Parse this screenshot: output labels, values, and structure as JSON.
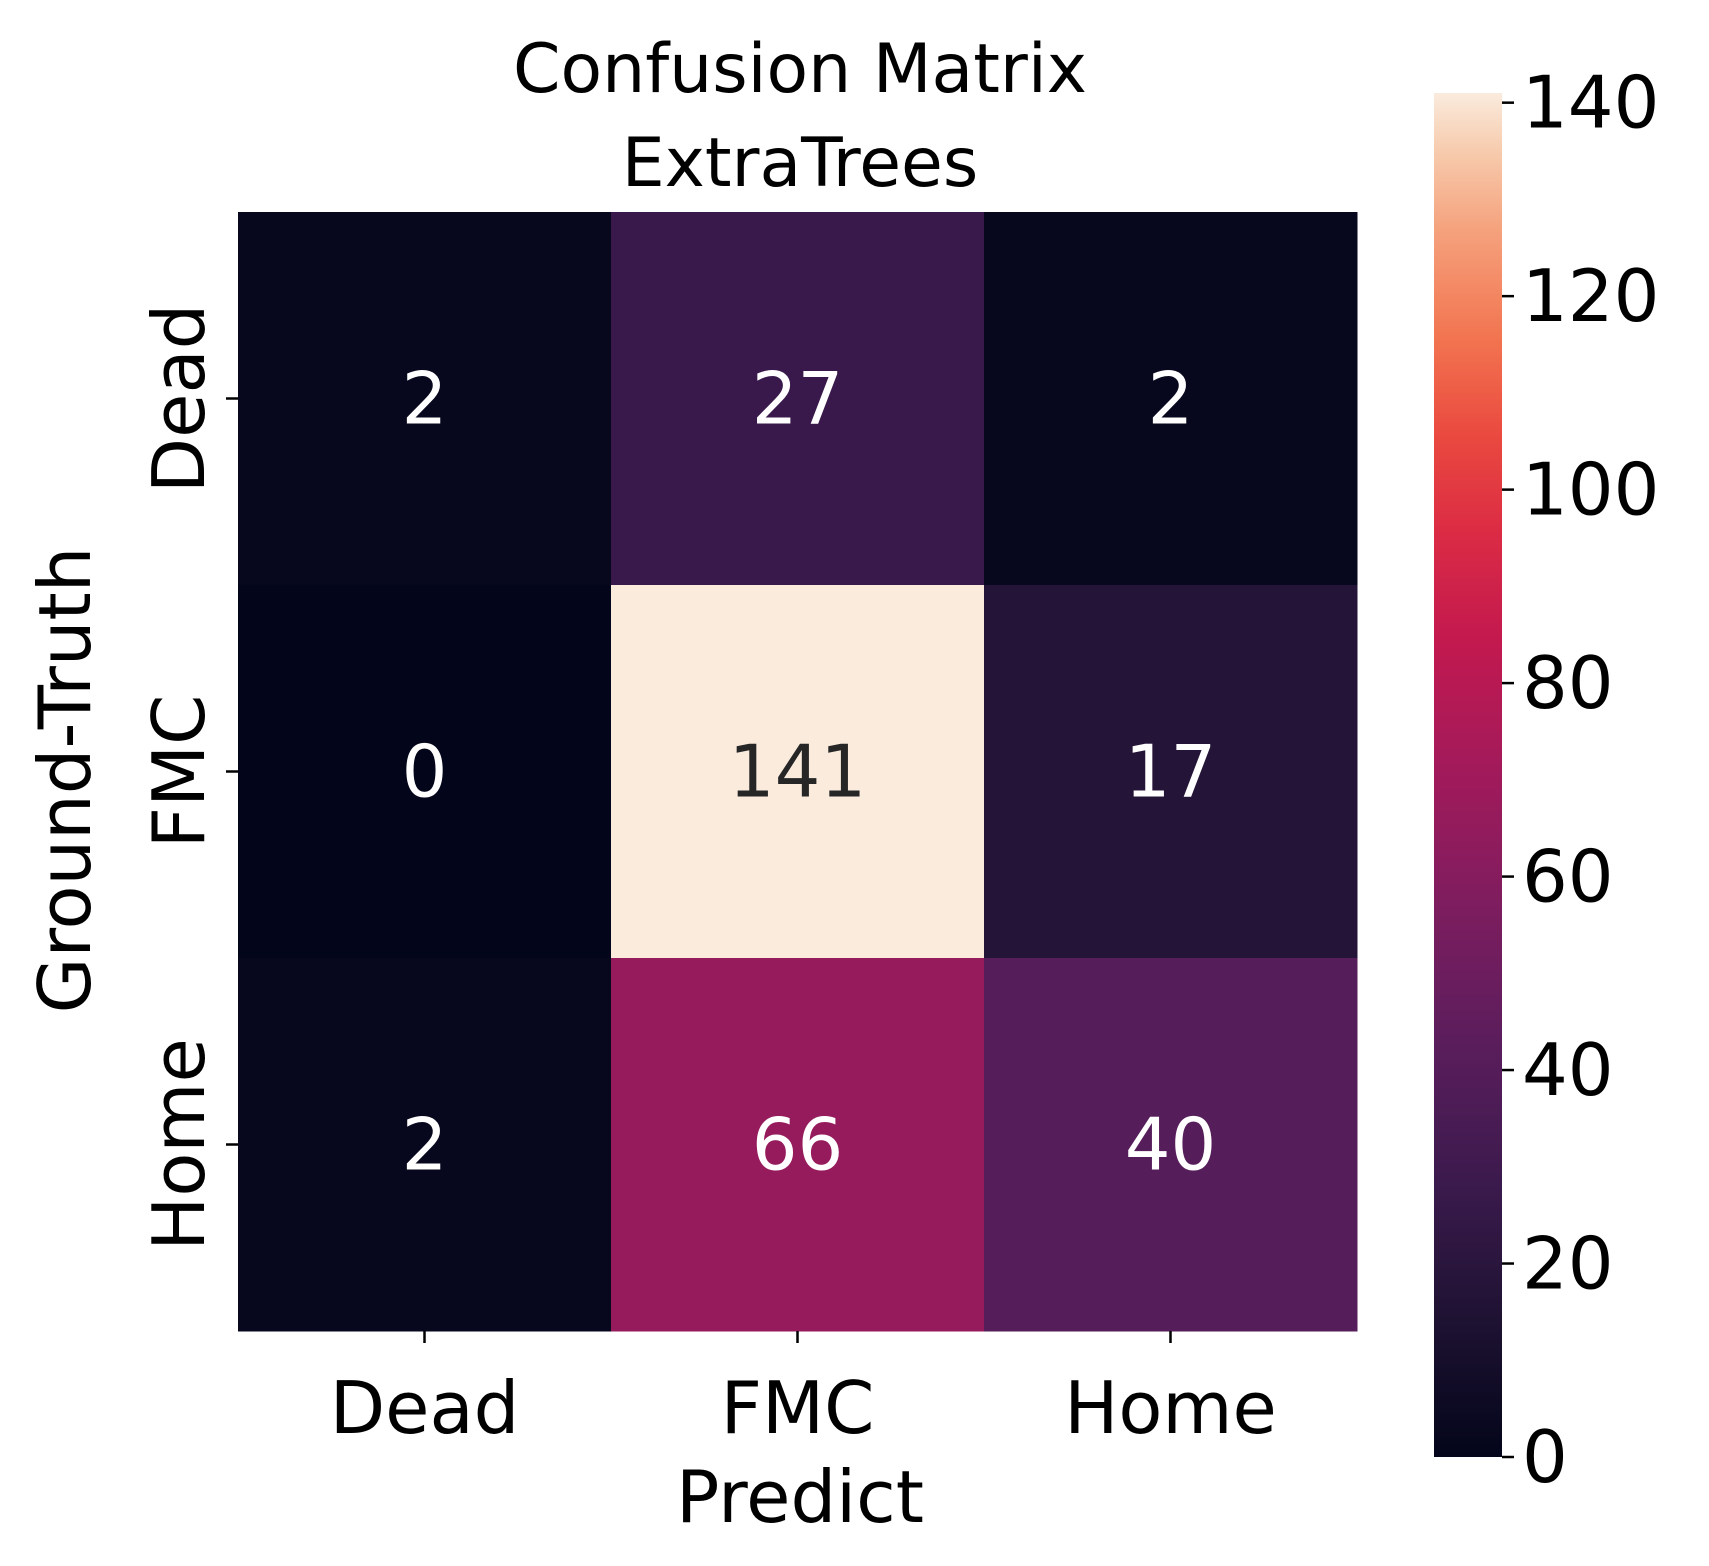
{
  "chart_data": {
    "type": "heatmap",
    "title": [
      "Confusion Matrix",
      "ExtraTrees"
    ],
    "xlabel": "Predict",
    "ylabel": "Ground-Truth",
    "x_categories": [
      "Dead",
      "FMC",
      "Home"
    ],
    "y_categories": [
      "Dead",
      "FMC",
      "Home"
    ],
    "values": [
      [
        2,
        27,
        2
      ],
      [
        0,
        141,
        17
      ],
      [
        2,
        66,
        40
      ]
    ],
    "colorbar": {
      "range": [
        0,
        141
      ],
      "ticks": [
        0,
        20,
        40,
        60,
        80,
        100,
        120,
        140
      ],
      "colormap": "rocket"
    }
  }
}
